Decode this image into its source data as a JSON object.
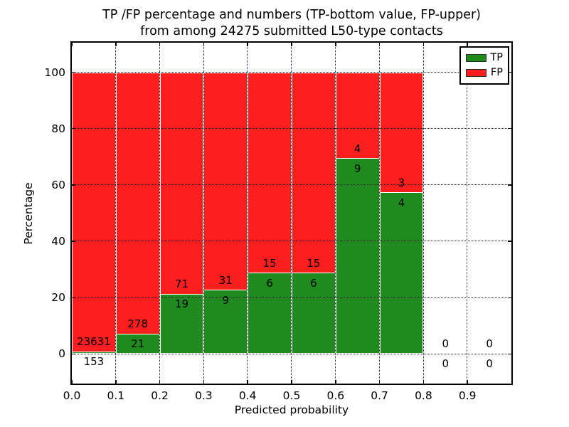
{
  "title": {
    "line1": "TP /FP percentage and numbers (TP-bottom value, FP-upper)",
    "line2": "from among 24275 submitted L50-type contacts"
  },
  "chart_data": {
    "type": "bar",
    "stacked": true,
    "title": "TP /FP percentage and numbers (TP-bottom value, FP-upper)\nfrom among 24275 submitted L50-type contacts",
    "xlabel": "Predicted probability",
    "ylabel": "Percentage",
    "x_tick_labels": [
      "0.0",
      "0.1",
      "0.2",
      "0.3",
      "0.4",
      "0.5",
      "0.6",
      "0.7",
      "0.8",
      "0.9"
    ],
    "x_tick_values": [
      0.0,
      0.1,
      0.2,
      0.3,
      0.4,
      0.5,
      0.6,
      0.7,
      0.8,
      0.9
    ],
    "y_tick_labels": [
      "0",
      "20",
      "40",
      "60",
      "80",
      "100"
    ],
    "y_tick_values": [
      0,
      20,
      40,
      60,
      80,
      100
    ],
    "xlim": [
      0.0,
      1.0
    ],
    "ylim": [
      -10.5,
      110.5
    ],
    "grid": "dotted",
    "bin_width": 0.1,
    "total_submitted_contacts": 24275,
    "series": [
      {
        "name": "TP",
        "color": "#1F8B1F"
      },
      {
        "name": "FP",
        "color": "#FB1E1E"
      }
    ],
    "bins": [
      {
        "x_start": 0.0,
        "x_end": 0.1,
        "tp": 153,
        "fp": 23631,
        "tp_pct": 0.64,
        "fp_pct": 99.36
      },
      {
        "x_start": 0.1,
        "x_end": 0.2,
        "tp": 21,
        "fp": 278,
        "tp_pct": 7.02,
        "fp_pct": 92.98
      },
      {
        "x_start": 0.2,
        "x_end": 0.3,
        "tp": 19,
        "fp": 71,
        "tp_pct": 21.11,
        "fp_pct": 78.89
      },
      {
        "x_start": 0.3,
        "x_end": 0.4,
        "tp": 9,
        "fp": 31,
        "tp_pct": 22.5,
        "fp_pct": 77.5
      },
      {
        "x_start": 0.4,
        "x_end": 0.5,
        "tp": 6,
        "fp": 15,
        "tp_pct": 28.57,
        "fp_pct": 71.43
      },
      {
        "x_start": 0.5,
        "x_end": 0.6,
        "tp": 6,
        "fp": 15,
        "tp_pct": 28.57,
        "fp_pct": 71.43
      },
      {
        "x_start": 0.6,
        "x_end": 0.7,
        "tp": 9,
        "fp": 4,
        "tp_pct": 69.23,
        "fp_pct": 30.77
      },
      {
        "x_start": 0.7,
        "x_end": 0.8,
        "tp": 4,
        "fp": 3,
        "tp_pct": 57.14,
        "fp_pct": 42.86
      },
      {
        "x_start": 0.8,
        "x_end": 0.9,
        "tp": 0,
        "fp": 0,
        "tp_pct": 0,
        "fp_pct": 0
      },
      {
        "x_start": 0.9,
        "x_end": 1.0,
        "tp": 0,
        "fp": 0,
        "tp_pct": 0,
        "fp_pct": 0
      }
    ],
    "legend": {
      "position": "upper-right",
      "entries": [
        {
          "label": "TP",
          "color": "#1F8B1F"
        },
        {
          "label": "FP",
          "color": "#FB1E1E"
        }
      ]
    }
  }
}
